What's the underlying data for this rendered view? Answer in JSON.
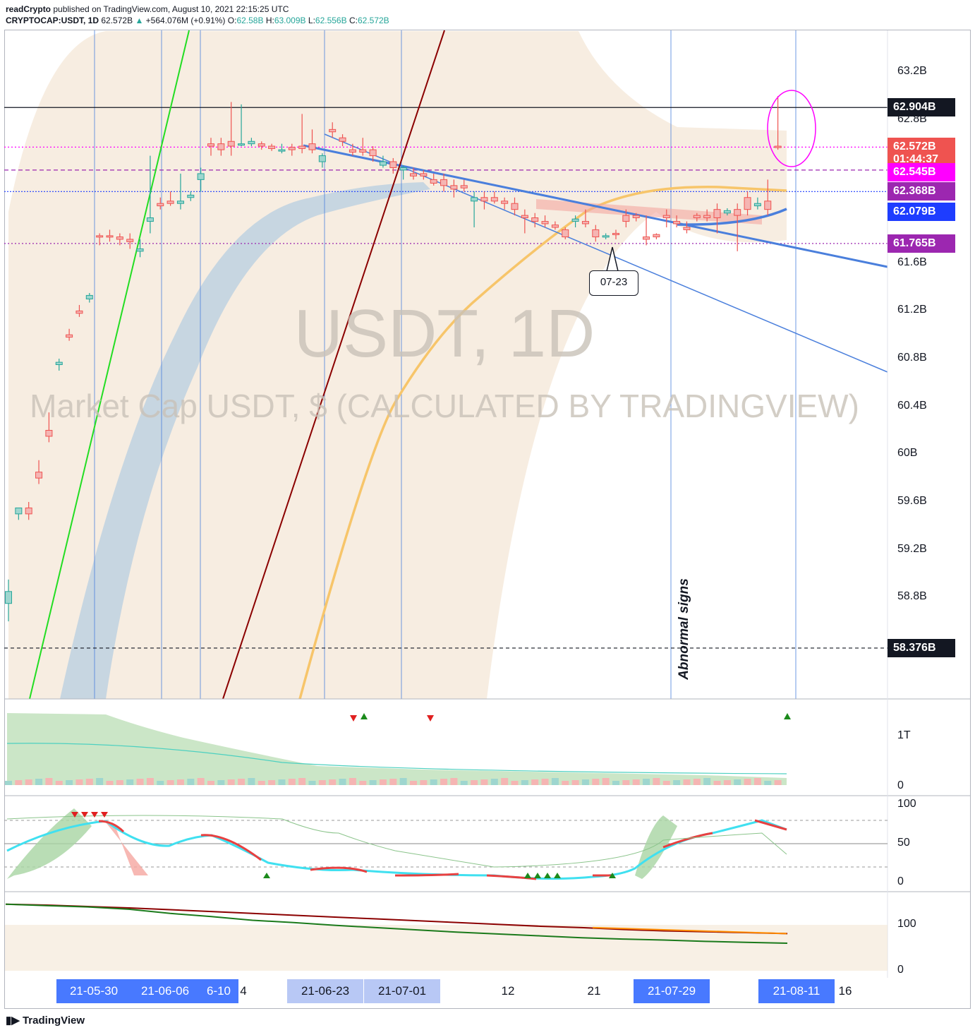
{
  "header": {
    "publisher": "readCrypto",
    "published_text": "published on TradingView.com, August 10, 2021 22:15:25 UTC",
    "symbol": "CRYPTOCAP:USDT, 1D",
    "last": "62.572B",
    "change": "+564.076M (+0.91%)",
    "open_label": "O:",
    "open": "62.58B",
    "high_label": "H:",
    "high": "63.009B",
    "low_label": "L:",
    "low": "62.556B",
    "close_label": "C:",
    "close": "62.572B"
  },
  "watermark": {
    "title": "USDT, 1D",
    "subtitle": "Market Cap USDT, $ (CALCULATED BY TRADINGVIEW)"
  },
  "annotations": {
    "callout": "07-23",
    "vertical_text": "Abnormal signs"
  },
  "price_labels": [
    {
      "text": "62.904B",
      "color": "#131722",
      "price": 62.904
    },
    {
      "text": "62.572B",
      "color": "#ef5350",
      "price": 62.572
    },
    {
      "text": "01:44:37",
      "color": "#ef5350",
      "price": 62.47
    },
    {
      "text": "62.545B",
      "color": "#ff00ff",
      "price": 62.36
    },
    {
      "text": "62.368B",
      "color": "#9c27b0",
      "price": 62.2
    },
    {
      "text": "62.079B",
      "color": "#1e3dff",
      "price": 62.03
    },
    {
      "text": "61.765B",
      "color": "#9c27b0",
      "price": 61.765
    },
    {
      "text": "58.376B",
      "color": "#131722",
      "price": 58.376
    }
  ],
  "x_axis_labels": [
    {
      "text": "21-05-30",
      "style": "hl"
    },
    {
      "text": "21-06-06",
      "style": "hl"
    },
    {
      "text": "6-10",
      "style": "hl"
    },
    {
      "text": "4",
      "style": "plain"
    },
    {
      "text": "21-06-23",
      "style": "lite"
    },
    {
      "text": "21-07-01",
      "style": "lite"
    },
    {
      "text": "12",
      "style": "plain"
    },
    {
      "text": "21",
      "style": "plain"
    },
    {
      "text": "21-07-29",
      "style": "hl"
    },
    {
      "text": "21-08-11",
      "style": "hl"
    },
    {
      "text": "16",
      "style": "plain"
    }
  ],
  "brand": "TradingView",
  "colors": {
    "up": "#26a69a",
    "down": "#ef5350",
    "ribbon": "#f3e6d4",
    "ema_band": "#b7cde0",
    "ma_yellow": "#f7c56a",
    "trend_blue": "#4a7fdc",
    "green_line": "#22dd22",
    "dark_red_line": "#8b0000"
  },
  "chart_data": [
    {
      "type": "candlestick",
      "title": "USDT, 1D",
      "ylabel": "Market Cap USDT, $",
      "y_ticks": [
        "63.2B",
        "62.8B",
        "61.6B",
        "61.2B",
        "60.8B",
        "60.4B",
        "60B",
        "59.6B",
        "59.2B",
        "58.8B"
      ],
      "y_tick_values": [
        63.2,
        62.8,
        61.6,
        61.2,
        60.8,
        60.4,
        60.0,
        59.6,
        59.2,
        58.8
      ],
      "ylim": [
        57.95,
        63.55
      ],
      "horizontal_levels": [
        62.904,
        62.572,
        62.38,
        62.2,
        61.765,
        58.376
      ],
      "candles": [
        [
          58.75,
          58.85,
          58.6,
          58.95
        ],
        [
          59.5,
          59.55,
          59.45,
          59.55
        ],
        [
          59.55,
          59.5,
          59.45,
          59.6
        ],
        [
          59.85,
          59.8,
          59.75,
          59.95
        ],
        [
          60.2,
          60.15,
          60.1,
          60.35
        ],
        [
          60.75,
          60.77,
          60.7,
          60.8
        ],
        [
          61.0,
          60.98,
          60.95,
          61.05
        ],
        [
          61.2,
          61.18,
          61.15,
          61.25
        ],
        [
          61.3,
          61.33,
          61.27,
          61.35
        ],
        [
          61.83,
          61.82,
          61.75,
          61.85
        ],
        [
          61.83,
          61.82,
          61.78,
          61.88
        ],
        [
          61.82,
          61.8,
          61.75,
          61.85
        ],
        [
          61.8,
          61.78,
          61.72,
          61.85
        ],
        [
          61.7,
          61.72,
          61.65,
          61.8
        ],
        [
          61.95,
          61.98,
          61.85,
          62.5
        ],
        [
          62.1,
          62.08,
          62.05,
          62.15
        ],
        [
          62.12,
          62.1,
          62.08,
          62.2
        ],
        [
          62.1,
          62.12,
          62.05,
          62.35
        ],
        [
          62.15,
          62.17,
          62.12,
          62.2
        ],
        [
          62.3,
          62.35,
          62.2,
          62.4
        ],
        [
          62.6,
          62.58,
          62.5,
          62.65
        ],
        [
          62.6,
          62.55,
          62.5,
          62.65
        ],
        [
          62.62,
          62.58,
          62.5,
          62.95
        ],
        [
          62.6,
          62.6,
          62.58,
          62.93
        ],
        [
          62.6,
          62.62,
          62.58,
          62.65
        ],
        [
          62.6,
          62.58,
          62.55,
          62.62
        ],
        [
          62.58,
          62.56,
          62.54,
          62.6
        ],
        [
          62.55,
          62.55,
          62.52,
          62.6
        ],
        [
          62.57,
          62.55,
          62.5,
          62.6
        ],
        [
          62.58,
          62.56,
          62.52,
          62.85
        ],
        [
          62.6,
          62.55,
          62.52,
          62.72
        ],
        [
          62.45,
          62.5,
          62.4,
          62.52
        ],
        [
          62.72,
          62.7,
          62.65,
          62.78
        ],
        [
          62.65,
          62.62,
          62.58,
          62.68
        ],
        [
          62.55,
          62.53,
          62.5,
          62.6
        ],
        [
          62.55,
          62.53,
          62.5,
          62.65
        ],
        [
          62.55,
          62.5,
          62.45,
          62.58
        ],
        [
          62.42,
          62.45,
          62.4,
          62.5
        ],
        [
          62.45,
          62.4,
          62.35,
          62.48
        ],
        [
          62.38,
          62.4,
          62.3,
          62.42
        ],
        [
          62.35,
          62.33,
          62.3,
          62.4
        ],
        [
          62.35,
          62.33,
          62.3,
          62.38
        ],
        [
          62.3,
          62.27,
          62.25,
          62.35
        ],
        [
          62.3,
          62.25,
          62.2,
          62.35
        ],
        [
          62.25,
          62.22,
          62.15,
          62.3
        ],
        [
          62.25,
          62.23,
          62.2,
          62.3
        ],
        [
          62.12,
          62.15,
          61.9,
          62.2
        ],
        [
          62.15,
          62.12,
          62.05,
          62.2
        ],
        [
          62.15,
          62.12,
          62.1,
          62.2
        ],
        [
          62.12,
          62.1,
          62.05,
          62.15
        ],
        [
          62.1,
          62.05,
          62.0,
          62.15
        ],
        [
          62.0,
          61.98,
          61.85,
          62.05
        ],
        [
          61.98,
          61.95,
          61.9,
          62.02
        ],
        [
          61.95,
          61.93,
          61.9,
          62.0
        ],
        [
          61.92,
          61.9,
          61.88,
          61.95
        ],
        [
          61.88,
          61.82,
          61.8,
          61.9
        ],
        [
          61.95,
          61.97,
          61.9,
          62.0
        ],
        [
          61.95,
          61.93,
          61.9,
          62.05
        ],
        [
          61.88,
          61.82,
          61.78,
          61.92
        ],
        [
          61.82,
          61.83,
          61.8,
          61.85
        ],
        [
          61.85,
          61.84,
          61.8,
          61.88
        ],
        [
          62.0,
          61.95,
          61.9,
          62.05
        ],
        [
          62.0,
          61.98,
          61.95,
          62.02
        ],
        [
          61.82,
          61.8,
          61.75,
          62.0
        ],
        [
          61.84,
          61.82,
          61.8,
          61.85
        ],
        [
          62.0,
          61.98,
          61.9,
          62.05
        ],
        [
          61.95,
          61.93,
          61.9,
          62.0
        ],
        [
          61.9,
          61.88,
          61.85,
          61.95
        ],
        [
          62.0,
          61.98,
          61.95,
          62.02
        ],
        [
          62.0,
          61.98,
          61.95,
          62.05
        ],
        [
          62.05,
          61.98,
          61.85,
          62.1
        ],
        [
          62.02,
          62.04,
          62.0,
          62.06
        ],
        [
          62.05,
          62.0,
          61.7,
          62.1
        ],
        [
          62.15,
          62.05,
          62.0,
          62.2
        ],
        [
          62.08,
          62.1,
          62.05,
          62.15
        ],
        [
          62.12,
          62.05,
          62.0,
          62.3
        ],
        [
          62.58,
          62.57,
          62.55,
          63.0
        ]
      ]
    },
    {
      "type": "area",
      "title": "",
      "y_ticks": [
        "1T",
        "0"
      ],
      "signals": [
        "down",
        "up",
        "down",
        "up"
      ]
    },
    {
      "type": "line",
      "title": "",
      "y_ticks": [
        "100",
        "50",
        "0"
      ],
      "levels": [
        80,
        50,
        20
      ]
    },
    {
      "type": "line",
      "title": "",
      "y_ticks": [
        "100",
        "0"
      ],
      "series": [
        {
          "values": [
            145,
            143,
            140,
            137,
            133,
            129,
            125,
            121,
            117,
            113,
            109,
            105,
            101,
            97,
            94,
            90,
            87,
            85,
            83,
            81
          ]
        },
        {
          "values": [
            145,
            142,
            139,
            134,
            125,
            118,
            110,
            105,
            99,
            94,
            89,
            84,
            80,
            76,
            72,
            69,
            67,
            64,
            62,
            60
          ]
        }
      ]
    }
  ]
}
